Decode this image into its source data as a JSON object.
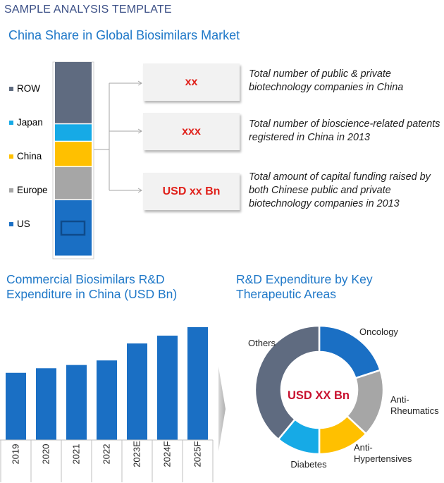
{
  "header": {
    "title": "SAMPLE ANALYSIS TEMPLATE"
  },
  "share_chart": {
    "title": "China Share in Global Biosimilars Market",
    "legend": [
      {
        "label": "ROW",
        "color": "#5f6b80"
      },
      {
        "label": "Japan",
        "color": "#16aae6"
      },
      {
        "label": "China",
        "color": "#ffc000"
      },
      {
        "label": "Europe",
        "color": "#a6a6a6"
      },
      {
        "label": "US",
        "color": "#1a6fc4"
      }
    ]
  },
  "stats": [
    {
      "value": "xx",
      "description": "Total number of public & private biotechnology companies in China"
    },
    {
      "value": "xxx",
      "description": "Total number of bioscience-related patents registered in China in 2013"
    },
    {
      "value": "USD xx Bn",
      "description": "Total amount of capital funding raised by both Chinese public and private biotechnology companies in 2013"
    }
  ],
  "rd_chart": {
    "title": "Commercial Biosimilars R&D Expenditure in China (USD Bn)"
  },
  "ta_chart": {
    "title": "R&D Expenditure by Key Therapeutic Areas"
  },
  "chart_data": [
    {
      "type": "bar",
      "title": "China Share in Global Biosimilars Market",
      "stacked": true,
      "series": [
        {
          "name": "US",
          "values": [
            29
          ]
        },
        {
          "name": "Europe",
          "values": [
            17
          ]
        },
        {
          "name": "China",
          "values": [
            13
          ]
        },
        {
          "name": "Japan",
          "values": [
            9
          ]
        },
        {
          "name": "ROW",
          "values": [
            32
          ]
        }
      ],
      "legend": "left"
    },
    {
      "type": "bar",
      "title": "Commercial Biosimilars R&D Expenditure in China (USD Bn)",
      "categories": [
        "2019",
        "2020",
        "2021",
        "2022",
        "2023E",
        "2024F",
        "2025F"
      ],
      "values": [
        10.3,
        11.0,
        11.5,
        12.2,
        14.8,
        16.0,
        17.3
      ],
      "color": "#1a6fc4"
    },
    {
      "type": "pie",
      "title": "R&D Expenditure by Key Therapeutic Areas",
      "center_label": "USD XX Bn",
      "labels": [
        "Oncology",
        "Anti-Rheumatics",
        "Anti-Hypertensives",
        "Diabetes",
        "Others"
      ],
      "values": [
        20,
        17,
        13,
        11,
        39
      ],
      "colors": [
        "#1a6fc4",
        "#a6a6a6",
        "#ffc000",
        "#16aae6",
        "#5f6b80"
      ],
      "donut": true
    }
  ]
}
